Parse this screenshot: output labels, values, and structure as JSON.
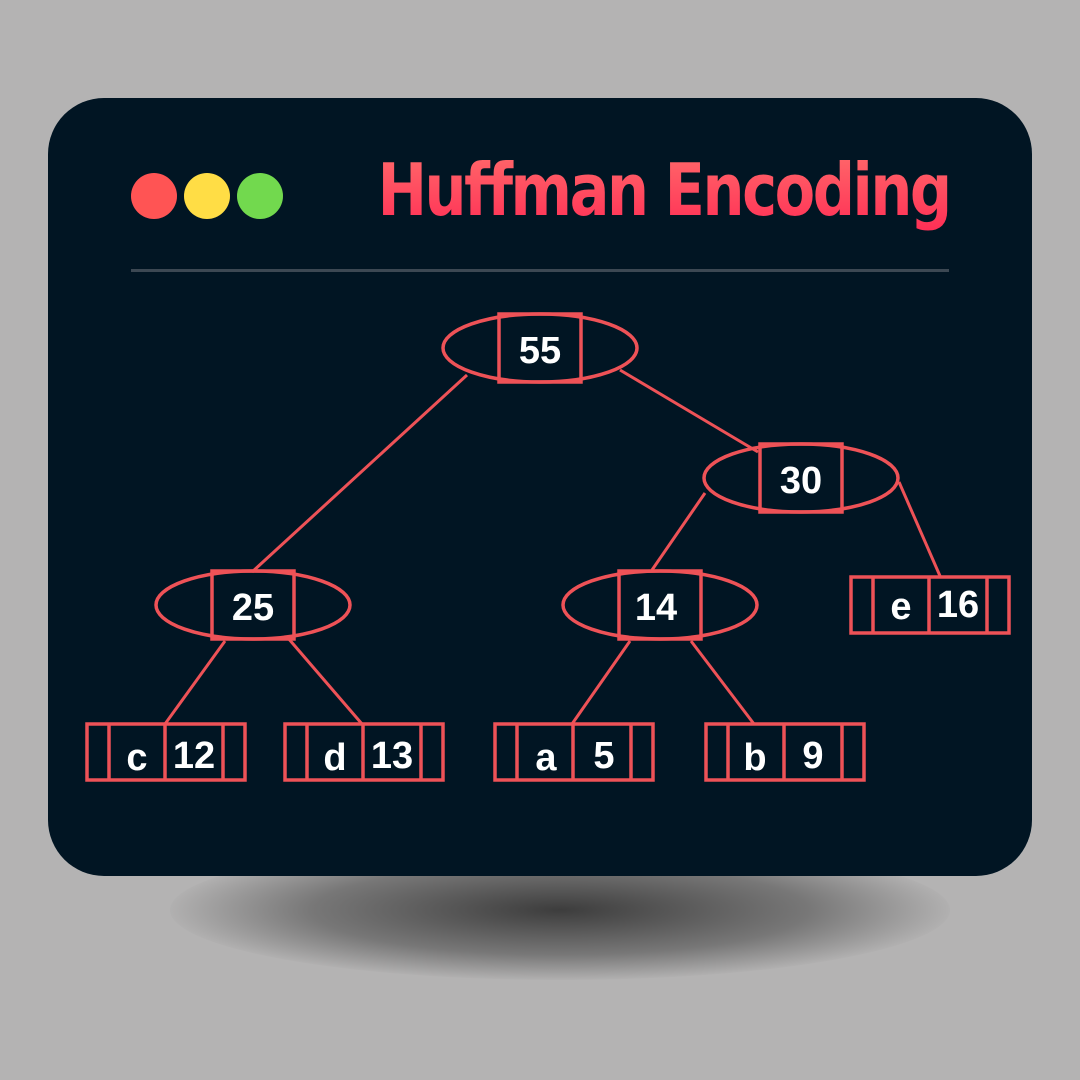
{
  "window": {
    "title": "Huffman Encoding",
    "controls": [
      "red-dot",
      "yellow-dot",
      "green-dot"
    ]
  },
  "colors": {
    "background": "#b4b3b3",
    "window": "#011523",
    "accent": "#ee5257",
    "title_gradient": [
      "#ff6b6b",
      "#ff2e55"
    ],
    "text": "#ffffff"
  },
  "tree": {
    "root": {
      "value": "55"
    },
    "internal": [
      {
        "id": "n30",
        "value": "30"
      },
      {
        "id": "n25",
        "value": "25"
      },
      {
        "id": "n14",
        "value": "14"
      }
    ],
    "leaves": [
      {
        "id": "leaf-c",
        "char": "c",
        "freq": "12"
      },
      {
        "id": "leaf-d",
        "char": "d",
        "freq": "13"
      },
      {
        "id": "leaf-a",
        "char": "a",
        "freq": "5"
      },
      {
        "id": "leaf-b",
        "char": "b",
        "freq": "9"
      },
      {
        "id": "leaf-e",
        "char": "e",
        "freq": "16"
      }
    ],
    "edges": [
      [
        "55",
        "25"
      ],
      [
        "55",
        "30"
      ],
      [
        "30",
        "14"
      ],
      [
        "30",
        "e"
      ],
      [
        "25",
        "c"
      ],
      [
        "25",
        "d"
      ],
      [
        "14",
        "a"
      ],
      [
        "14",
        "b"
      ]
    ]
  }
}
